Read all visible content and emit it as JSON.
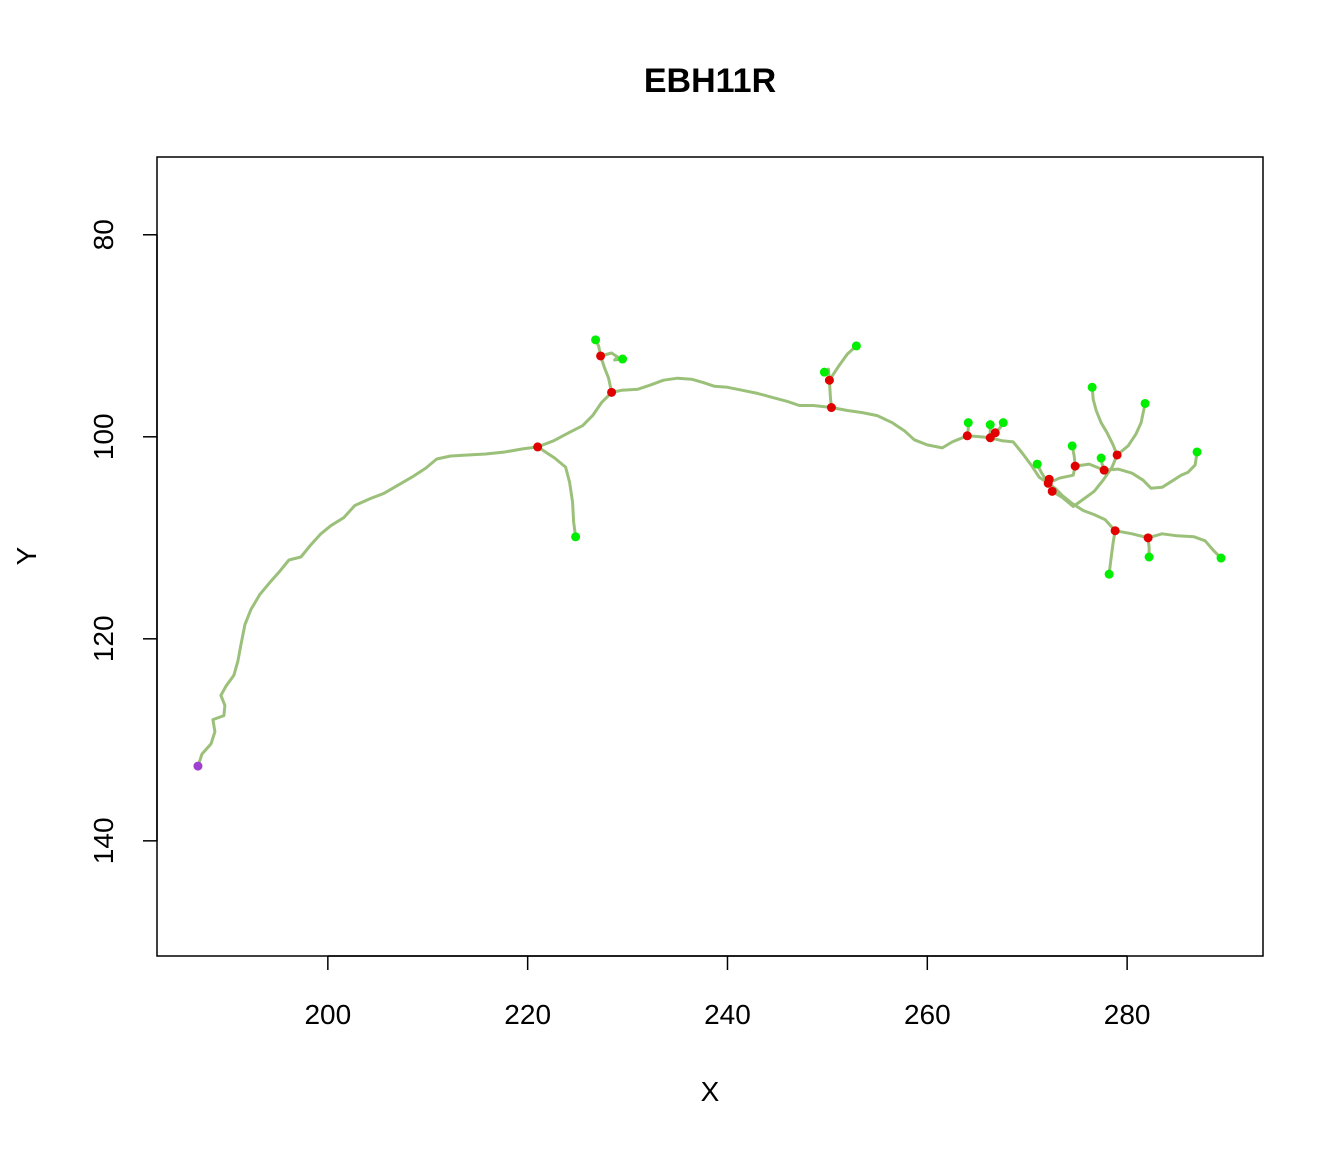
{
  "chart_data": {
    "type": "scatter",
    "title": "EBH11R",
    "xlabel": "X",
    "ylabel": "Y",
    "xlim": [
      182.9,
      293.6
    ],
    "ylim": [
      72.3,
      151.4
    ],
    "y_reversed": true,
    "xticks": [
      200,
      220,
      240,
      260,
      280
    ],
    "yticks": [
      80,
      100,
      120,
      140
    ],
    "grid": false,
    "legend": "none",
    "colors": {
      "trace": "#9bc07a",
      "branch_point": "#e00000",
      "end_point": "#00ee00",
      "root": "#a040d0"
    },
    "series": [
      {
        "role": "trace",
        "segments": [
          [
            [
              187.0,
              132.6
            ],
            [
              187.4,
              131.4
            ],
            [
              188.3,
              130.4
            ],
            [
              188.7,
              129.2
            ],
            [
              188.5,
              128.0
            ],
            [
              189.6,
              127.6
            ],
            [
              189.7,
              126.6
            ],
            [
              189.3,
              125.6
            ],
            [
              189.8,
              124.7
            ],
            [
              190.6,
              123.6
            ],
            [
              191.0,
              122.2
            ],
            [
              191.3,
              120.6
            ],
            [
              191.7,
              118.6
            ],
            [
              192.3,
              117.1
            ],
            [
              193.2,
              115.6
            ],
            [
              194.3,
              114.3
            ],
            [
              195.2,
              113.3
            ],
            [
              196.1,
              112.2
            ],
            [
              197.3,
              111.9
            ],
            [
              198.2,
              110.8
            ],
            [
              199.3,
              109.6
            ],
            [
              200.3,
              108.8
            ],
            [
              201.6,
              108.0
            ],
            [
              202.7,
              106.8
            ],
            [
              204.3,
              106.1
            ],
            [
              205.6,
              105.6
            ],
            [
              207.0,
              104.8
            ],
            [
              208.4,
              104.0
            ],
            [
              209.8,
              103.1
            ],
            [
              210.9,
              102.2
            ],
            [
              212.3,
              101.9
            ],
            [
              214.0,
              101.8
            ],
            [
              215.8,
              101.7
            ],
            [
              217.7,
              101.5
            ],
            [
              219.5,
              101.2
            ],
            [
              221.0,
              101.0
            ]
          ],
          [
            [
              221.0,
              101.0
            ],
            [
              222.6,
              100.4
            ],
            [
              224.1,
              99.6
            ],
            [
              225.5,
              98.9
            ],
            [
              226.5,
              97.9
            ],
            [
              227.4,
              96.6
            ],
            [
              228.4,
              95.6
            ]
          ],
          [
            [
              228.4,
              95.6
            ],
            [
              229.4,
              95.4
            ],
            [
              231.0,
              95.3
            ],
            [
              232.2,
              94.9
            ],
            [
              233.6,
              94.4
            ],
            [
              235.0,
              94.2
            ],
            [
              236.4,
              94.3
            ],
            [
              237.5,
              94.6
            ],
            [
              238.7,
              95.0
            ],
            [
              240.0,
              95.1
            ],
            [
              241.5,
              95.4
            ],
            [
              243.0,
              95.7
            ],
            [
              244.5,
              96.1
            ],
            [
              246.0,
              96.5
            ],
            [
              247.2,
              96.9
            ],
            [
              248.6,
              96.9
            ],
            [
              250.4,
              97.1
            ]
          ],
          [
            [
              250.4,
              97.1
            ],
            [
              252.0,
              97.4
            ],
            [
              253.5,
              97.6
            ],
            [
              255.0,
              97.9
            ],
            [
              256.5,
              98.6
            ],
            [
              257.7,
              99.4
            ],
            [
              258.7,
              100.3
            ],
            [
              260.0,
              100.8
            ],
            [
              261.5,
              101.1
            ],
            [
              262.5,
              100.5
            ],
            [
              264.0,
              99.9
            ]
          ],
          [
            [
              264.0,
              99.9
            ],
            [
              265.3,
              100.0
            ],
            [
              266.3,
              100.1
            ]
          ],
          [
            [
              266.3,
              100.1
            ],
            [
              267.5,
              100.4
            ],
            [
              268.6,
              100.5
            ],
            [
              269.5,
              101.6
            ],
            [
              270.4,
              102.8
            ],
            [
              271.2,
              104.0
            ],
            [
              272.1,
              104.6
            ]
          ],
          [
            [
              272.1,
              104.6
            ],
            [
              272.8,
              105.1
            ],
            [
              273.5,
              105.8
            ],
            [
              274.5,
              106.6
            ],
            [
              275.6,
              107.3
            ],
            [
              276.7,
              107.7
            ],
            [
              277.8,
              108.2
            ],
            [
              278.8,
              109.3
            ]
          ],
          [
            [
              278.8,
              109.3
            ],
            [
              280.5,
              109.6
            ],
            [
              282.1,
              110.0
            ]
          ],
          [
            [
              282.1,
              110.0
            ],
            [
              283.5,
              109.6
            ],
            [
              285.0,
              109.8
            ],
            [
              286.7,
              109.9
            ],
            [
              287.8,
              110.3
            ],
            [
              288.6,
              111.2
            ],
            [
              289.4,
              112.0
            ]
          ],
          [
            [
              221.0,
              101.0
            ],
            [
              222.7,
              102.1
            ],
            [
              223.8,
              103.0
            ],
            [
              224.2,
              104.5
            ],
            [
              224.5,
              106.5
            ],
            [
              224.6,
              108.4
            ],
            [
              224.8,
              109.9
            ]
          ],
          [
            [
              228.4,
              95.6
            ],
            [
              228.1,
              94.2
            ],
            [
              227.7,
              93.2
            ],
            [
              227.3,
              92.0
            ]
          ],
          [
            [
              227.3,
              92.0
            ],
            [
              227.1,
              91.0
            ],
            [
              226.8,
              90.4
            ]
          ],
          [
            [
              227.3,
              92.0
            ],
            [
              228.4,
              91.7
            ],
            [
              229.0,
              92.1
            ],
            [
              228.7,
              92.4
            ],
            [
              229.5,
              92.3
            ]
          ],
          [
            [
              250.4,
              97.1
            ],
            [
              250.3,
              96.1
            ],
            [
              250.2,
              94.4
            ]
          ],
          [
            [
              250.2,
              94.4
            ],
            [
              250.1,
              93.3
            ],
            [
              249.7,
              93.6
            ]
          ],
          [
            [
              250.2,
              94.4
            ],
            [
              251.2,
              92.9
            ],
            [
              252.0,
              91.8
            ],
            [
              252.9,
              91.0
            ]
          ],
          [
            [
              264.0,
              99.9
            ],
            [
              264.1,
              99.2
            ],
            [
              264.1,
              98.6
            ]
          ],
          [
            [
              266.3,
              100.1
            ],
            [
              266.3,
              99.6
            ],
            [
              266.3,
              98.8
            ]
          ],
          [
            [
              266.3,
              100.1
            ],
            [
              266.7,
              99.7
            ],
            [
              267.3,
              99.1
            ],
            [
              267.6,
              98.6
            ]
          ],
          [
            [
              272.1,
              104.6
            ],
            [
              271.4,
              103.5
            ],
            [
              271.0,
              102.7
            ]
          ],
          [
            [
              272.1,
              104.6
            ],
            [
              273.2,
              104.1
            ],
            [
              274.6,
              103.8
            ],
            [
              274.8,
              102.9
            ]
          ],
          [
            [
              274.8,
              102.9
            ],
            [
              274.7,
              101.9
            ],
            [
              274.5,
              100.9
            ]
          ],
          [
            [
              274.8,
              102.9
            ],
            [
              276.2,
              102.7
            ],
            [
              277.7,
              103.3
            ]
          ],
          [
            [
              277.7,
              103.3
            ],
            [
              277.5,
              102.7
            ],
            [
              277.4,
              102.1
            ]
          ],
          [
            [
              277.7,
              103.3
            ],
            [
              279.1,
              103.2
            ],
            [
              280.5,
              103.6
            ],
            [
              281.6,
              104.3
            ],
            [
              282.4,
              105.1
            ],
            [
              283.5,
              105.0
            ],
            [
              284.3,
              104.5
            ],
            [
              285.4,
              103.8
            ],
            [
              286.1,
              103.5
            ],
            [
              286.8,
              102.8
            ],
            [
              287.0,
              101.5
            ]
          ],
          [
            [
              272.5,
              105.4
            ],
            [
              273.5,
              106.0
            ],
            [
              274.6,
              106.9
            ],
            [
              275.6,
              106.2
            ],
            [
              276.7,
              105.4
            ],
            [
              277.6,
              104.3
            ],
            [
              278.5,
              103.0
            ],
            [
              279.0,
              101.8
            ]
          ],
          [
            [
              279.0,
              101.8
            ],
            [
              278.6,
              100.8
            ],
            [
              278.0,
              99.6
            ],
            [
              277.4,
              98.6
            ],
            [
              276.9,
              97.4
            ],
            [
              276.6,
              96.3
            ],
            [
              276.5,
              95.1
            ]
          ],
          [
            [
              279.0,
              101.8
            ],
            [
              280.1,
              100.9
            ],
            [
              280.9,
              99.7
            ],
            [
              281.4,
              98.6
            ],
            [
              281.8,
              96.7
            ]
          ],
          [
            [
              278.8,
              109.3
            ],
            [
              278.6,
              110.5
            ],
            [
              278.4,
              112.0
            ],
            [
              278.2,
              113.6
            ]
          ],
          [
            [
              282.1,
              110.0
            ],
            [
              282.2,
              111.0
            ],
            [
              282.2,
              111.9
            ]
          ]
        ]
      },
      {
        "role": "branch_point",
        "points": [
          [
            221.0,
            101.0
          ],
          [
            228.4,
            95.6
          ],
          [
            227.3,
            92.0
          ],
          [
            250.4,
            97.1
          ],
          [
            250.2,
            94.4
          ],
          [
            264.0,
            99.9
          ],
          [
            266.3,
            100.1
          ],
          [
            266.8,
            99.6
          ],
          [
            272.1,
            104.6
          ],
          [
            272.2,
            104.2
          ],
          [
            272.5,
            105.4
          ],
          [
            274.8,
            102.9
          ],
          [
            277.7,
            103.3
          ],
          [
            279.0,
            101.8
          ],
          [
            278.8,
            109.3
          ],
          [
            282.1,
            110.0
          ]
        ]
      },
      {
        "role": "end_point",
        "points": [
          [
            224.8,
            109.9
          ],
          [
            226.8,
            90.4
          ],
          [
            229.5,
            92.3
          ],
          [
            249.7,
            93.6
          ],
          [
            252.9,
            91.0
          ],
          [
            264.1,
            98.6
          ],
          [
            266.3,
            98.8
          ],
          [
            267.6,
            98.6
          ],
          [
            271.0,
            102.7
          ],
          [
            274.5,
            100.9
          ],
          [
            277.4,
            102.1
          ],
          [
            276.5,
            95.1
          ],
          [
            281.8,
            96.7
          ],
          [
            287.0,
            101.5
          ],
          [
            289.4,
            112.0
          ],
          [
            278.2,
            113.6
          ],
          [
            282.2,
            111.9
          ]
        ]
      },
      {
        "role": "root",
        "points": [
          [
            187.0,
            132.6
          ]
        ]
      }
    ]
  }
}
